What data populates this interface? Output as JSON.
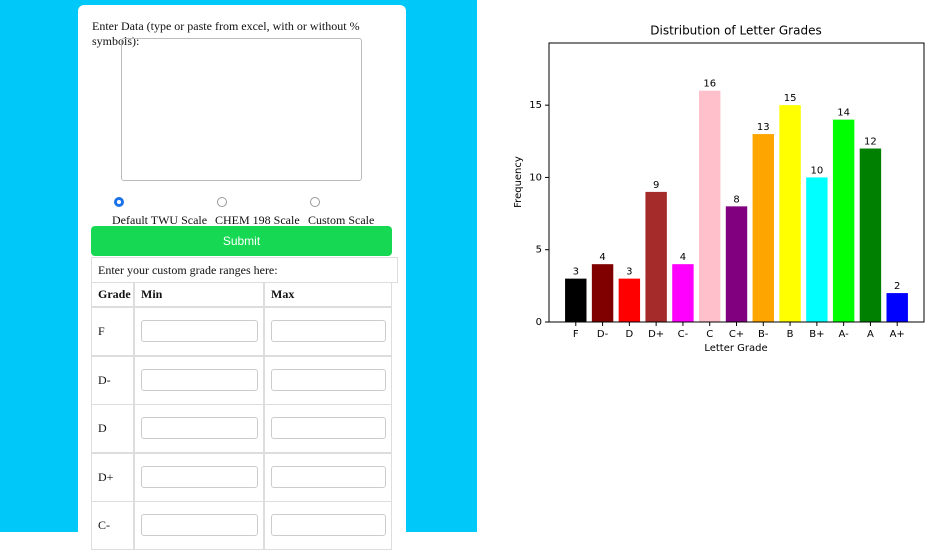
{
  "form": {
    "prompt": "Enter Data (type or paste from excel, with or without % symbols):",
    "scales": [
      "Default TWU Scale",
      "CHEM 198 Scale",
      "Custom Scale"
    ],
    "submit": "Submit",
    "custom_prompt": "Enter your custom grade ranges here:",
    "table": {
      "headers": [
        "Grade",
        "Min",
        "Max"
      ],
      "rows": [
        "F",
        "D-",
        "D",
        "D+",
        "C-"
      ]
    }
  },
  "chart_data": {
    "type": "bar",
    "title": "Distribution of Letter Grades",
    "x_label": "Letter Grade",
    "y_label": "Frequency",
    "categories": [
      "F",
      "D-",
      "D",
      "D+",
      "C-",
      "C",
      "C+",
      "B-",
      "B",
      "B+",
      "A-",
      "A",
      "A+"
    ],
    "values": [
      3,
      4,
      3,
      9,
      4,
      16,
      8,
      13,
      15,
      10,
      14,
      12,
      2
    ],
    "colors": [
      "#000000",
      "#800000",
      "#ff0000",
      "#a52a2a",
      "#ff00ff",
      "#ffc0cb",
      "#800080",
      "#ffa500",
      "#ffff00",
      "#00ffff",
      "#00ff00",
      "#008000",
      "#0000ff"
    ],
    "ylim": [
      0,
      19.3
    ],
    "yticks": [
      0,
      5,
      10,
      15
    ]
  }
}
